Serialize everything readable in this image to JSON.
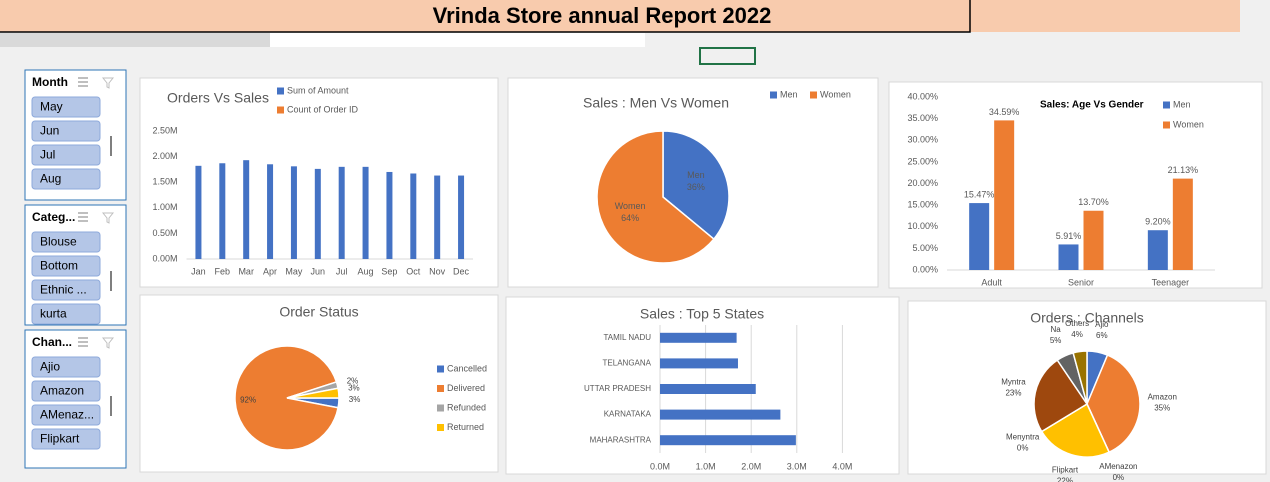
{
  "header": {
    "title": "Vrinda Store annual Report 2022"
  },
  "slicers": [
    {
      "title": "Month",
      "items": [
        "May",
        "Jun",
        "Jul",
        "Aug"
      ]
    },
    {
      "title": "Categ...",
      "items": [
        "Blouse",
        "Bottom",
        "Ethnic ...",
        "kurta"
      ]
    },
    {
      "title": "Chan...",
      "items": [
        "Ajio",
        "Amazon",
        "AMenaz...",
        "Flipkart"
      ]
    }
  ],
  "chart_data": [
    {
      "type": "bar",
      "title": "Orders Vs Sales",
      "categories": [
        "Jan",
        "Feb",
        "Mar",
        "Apr",
        "May",
        "Jun",
        "Jul",
        "Aug",
        "Sep",
        "Oct",
        "Nov",
        "Dec"
      ],
      "series": [
        {
          "name": "Sum of Amount",
          "color": "#4472c4",
          "values": [
            1820000,
            1870000,
            1930000,
            1850000,
            1810000,
            1760000,
            1800000,
            1800000,
            1700000,
            1670000,
            1630000,
            1630000
          ]
        },
        {
          "name": "Count of Order ID",
          "color": "#ed7d31",
          "values": [
            null,
            null,
            null,
            null,
            null,
            null,
            null,
            null,
            null,
            null,
            null,
            null
          ]
        }
      ],
      "ylim": [
        0,
        2500000
      ],
      "yticks": [
        {
          "value": 0,
          "label": "0.00M"
        },
        {
          "value": 500000,
          "label": "0.50M"
        },
        {
          "value": 1000000,
          "label": "1.00M"
        },
        {
          "value": 1500000,
          "label": "1.50M"
        },
        {
          "value": 2000000,
          "label": "2.00M"
        },
        {
          "value": 2500000,
          "label": "2.50M"
        }
      ]
    },
    {
      "type": "pie",
      "title": "Sales : Men Vs Women",
      "categories": [
        "Men",
        "Women"
      ],
      "values": [
        36,
        64
      ],
      "value_labels": [
        "36%",
        "64%"
      ],
      "colors": [
        "#4472c4",
        "#ed7d31"
      ]
    },
    {
      "type": "bar",
      "title": "Sales: Age Vs Gender",
      "categories": [
        "Adult",
        "Senior",
        "Teenager"
      ],
      "series": [
        {
          "name": "Men",
          "color": "#4472c4",
          "values": [
            15.47,
            5.91,
            9.2
          ],
          "value_labels": [
            "15.47%",
            "5.91%",
            "9.20%"
          ]
        },
        {
          "name": "Women",
          "color": "#ed7d31",
          "values": [
            34.59,
            13.7,
            21.13
          ],
          "value_labels": [
            "34.59%",
            "13.70%",
            "21.13%"
          ]
        }
      ],
      "ylim": [
        0,
        40
      ],
      "yticks": [
        {
          "value": 0,
          "label": "0.00%"
        },
        {
          "value": 5,
          "label": "5.00%"
        },
        {
          "value": 10,
          "label": "10.00%"
        },
        {
          "value": 15,
          "label": "15.00%"
        },
        {
          "value": 20,
          "label": "20.00%"
        },
        {
          "value": 25,
          "label": "25.00%"
        },
        {
          "value": 30,
          "label": "30.00%"
        },
        {
          "value": 35,
          "label": "35.00%"
        },
        {
          "value": 40,
          "label": "40.00%"
        }
      ]
    },
    {
      "type": "pie",
      "title": "Order Status",
      "categories": [
        "Cancelled",
        "Delivered",
        "Refunded",
        "Returned"
      ],
      "values": [
        3,
        92,
        2,
        3
      ],
      "value_labels": [
        "3%",
        "92%",
        "2%",
        "3%"
      ],
      "colors": [
        "#4472c4",
        "#ed7d31",
        "#a5a5a5",
        "#ffc000"
      ]
    },
    {
      "type": "bar",
      "orientation": "horizontal",
      "title": "Sales : Top 5 States",
      "categories": [
        "TAMIL NADU",
        "TELANGANA",
        "UTTAR PRADESH",
        "KARNATAKA",
        "MAHARASHTRA"
      ],
      "values": [
        1680000,
        1710000,
        2100000,
        2640000,
        2980000
      ],
      "color": "#4472c4",
      "xlim": [
        0,
        5000000
      ],
      "xticks": [
        {
          "value": 0,
          "label": "0.0M"
        },
        {
          "value": 1000000,
          "label": "1.0M"
        },
        {
          "value": 2000000,
          "label": "2.0M"
        },
        {
          "value": 3000000,
          "label": "3.0M"
        },
        {
          "value": 4000000,
          "label": "4.0M"
        }
      ],
      "grid": true
    },
    {
      "type": "pie",
      "title": "Orders : Channels",
      "categories": [
        "Ajio",
        "Amazon",
        "AMenazon",
        "Flipkart",
        "Menyntra",
        "Myntra",
        "Na",
        "Others"
      ],
      "values": [
        6,
        35,
        0,
        22,
        0,
        23,
        5,
        4
      ],
      "value_labels": [
        "6%",
        "35%",
        "0%",
        "22%",
        "0%",
        "23%",
        "5%",
        "4%"
      ],
      "colors": [
        "#4472c4",
        "#ed7d31",
        "#a5a5a5",
        "#ffc000",
        "#5b9bd5",
        "#9e480e",
        "#636363",
        "#997300"
      ]
    }
  ]
}
